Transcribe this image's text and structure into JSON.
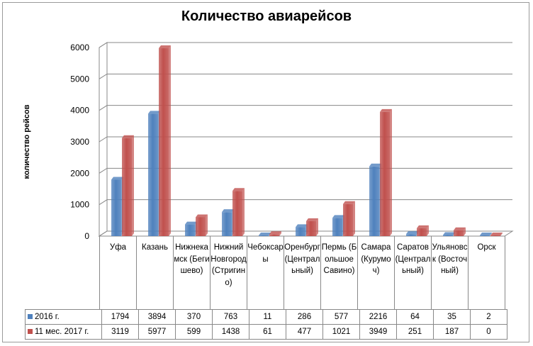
{
  "chart_data": {
    "type": "bar",
    "title": "Количество авиарейсов",
    "ylabel": "количество рейсов",
    "xlabel": "",
    "ylim": [
      0,
      6000
    ],
    "yticks": [
      0,
      1000,
      2000,
      3000,
      4000,
      5000,
      6000
    ],
    "grid": true,
    "legend": "data-table",
    "categories": [
      "Уфа",
      "Казань",
      "Нижнекамск (Бегишево)",
      "Нижний Новгород (Стригино)",
      "Чебоксары",
      "Оренбург (Центральный)",
      "Пермь (Большое Савино)",
      "Самара (Курумоч)",
      "Саратов (Центральный)",
      "Ульяновск (Восточный)",
      "Орск"
    ],
    "series": [
      {
        "name": "2016 г.",
        "color": "#4f81bd",
        "values": [
          1794,
          3894,
          370,
          763,
          11,
          286,
          577,
          2216,
          64,
          35,
          2
        ]
      },
      {
        "name": "11 мес.  2017 г.",
        "color": "#c0504d",
        "values": [
          3119,
          5977,
          599,
          1438,
          61,
          477,
          1021,
          3949,
          251,
          187,
          0
        ]
      }
    ]
  }
}
